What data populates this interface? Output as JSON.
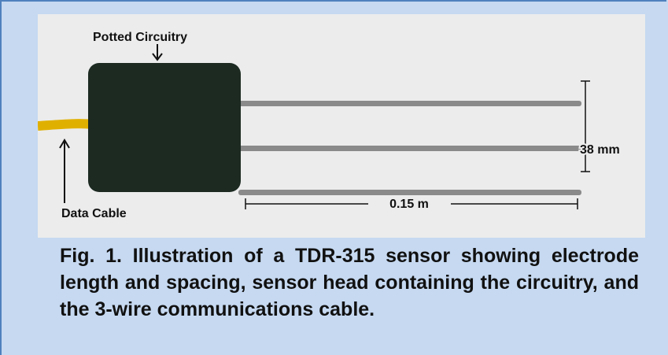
{
  "figure": {
    "labels": {
      "potted": "Potted Circuitry",
      "cable": "Data Cable",
      "spacing": "38 mm",
      "length": "0.15 m"
    },
    "caption": "Fig. 1. Illustration of a TDR-315 sensor showing electrode length and spacing, sensor head containing the circuitry, and the 3-wire communications cable."
  }
}
